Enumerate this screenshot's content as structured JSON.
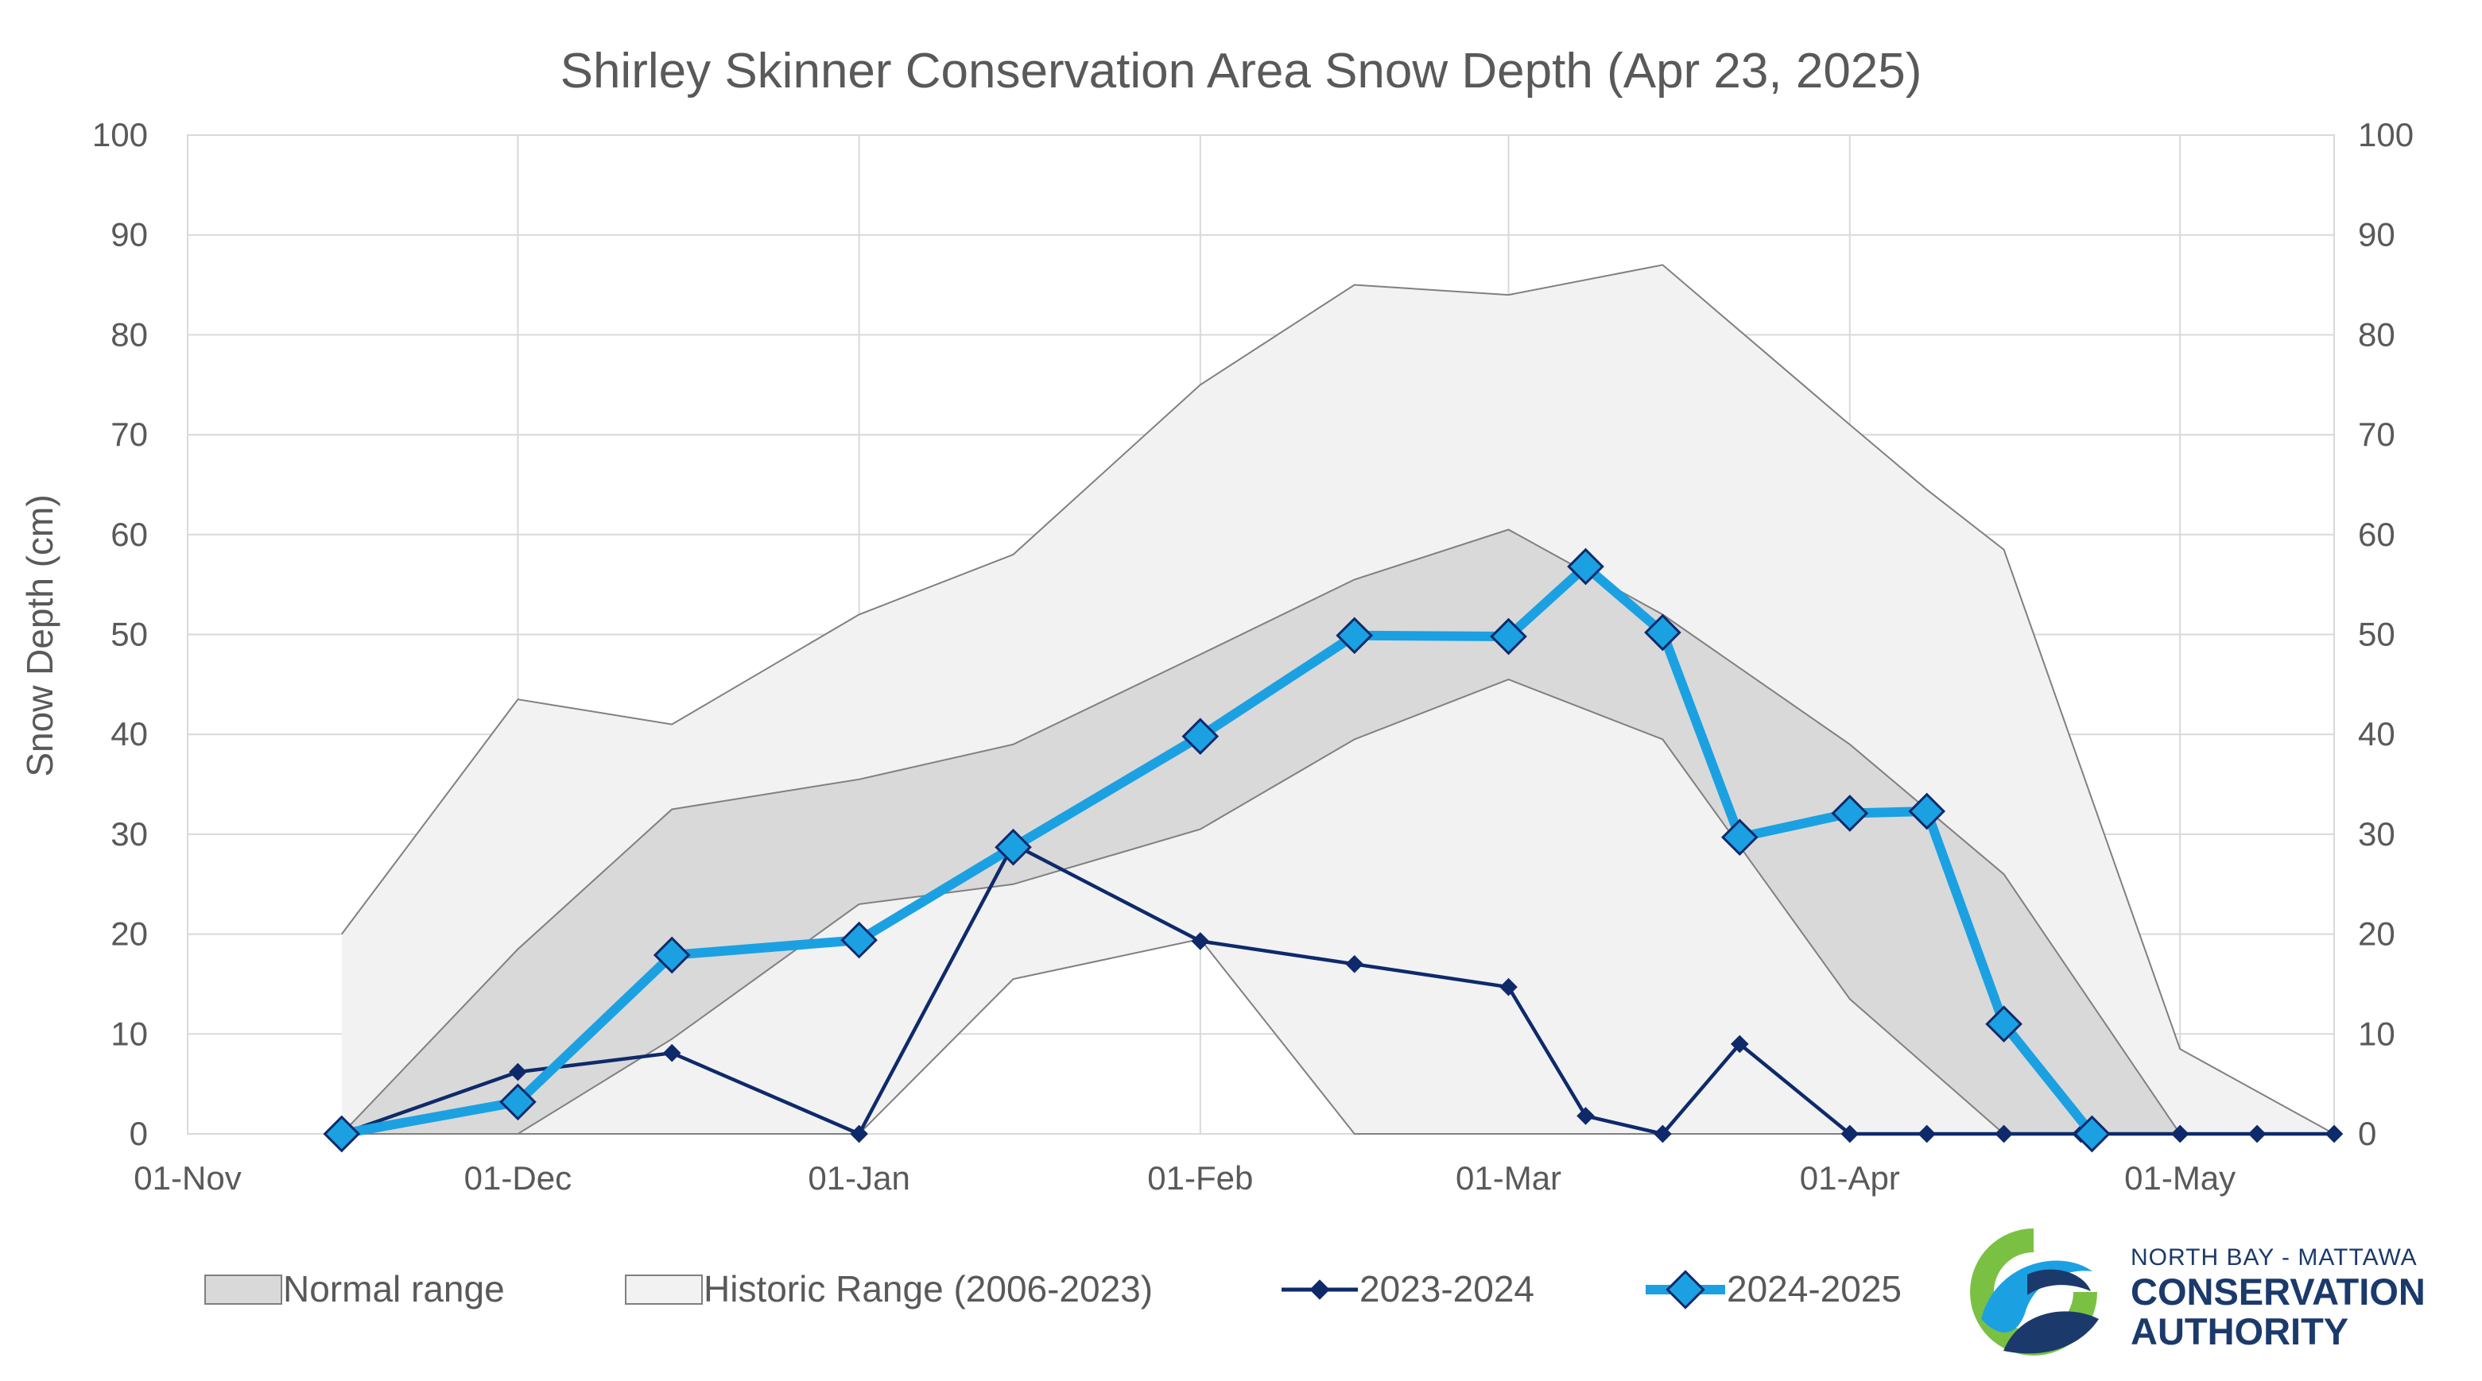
{
  "chart_data": {
    "type": "line",
    "title": "Shirley Skinner Conservation Area Snow Depth (Apr 23, 2025)",
    "ylabel": "Snow Depth (cm)",
    "xlabel": "",
    "ylim": [
      0,
      100
    ],
    "yticks": [
      0,
      10,
      20,
      30,
      40,
      50,
      60,
      70,
      80,
      90,
      100
    ],
    "xlim": [
      "2024-11-01",
      "2025-05-15"
    ],
    "xticks": [
      {
        "date": "2024-11-01",
        "label": "01-Nov"
      },
      {
        "date": "2024-12-01",
        "label": "01-Dec"
      },
      {
        "date": "2025-01-01",
        "label": "01-Jan"
      },
      {
        "date": "2025-02-01",
        "label": "01-Feb"
      },
      {
        "date": "2025-03-01",
        "label": "01-Mar"
      },
      {
        "date": "2025-04-01",
        "label": "01-Apr"
      },
      {
        "date": "2025-05-01",
        "label": "01-May"
      }
    ],
    "secondary_y_axis": true,
    "grid": true,
    "legend_position": "bottom",
    "series": [
      {
        "name": "Normal range",
        "kind": "band",
        "color": "#d9d9d9",
        "x": [
          "2024-11-15",
          "2024-12-01",
          "2024-12-15",
          "2025-01-01",
          "2025-01-15",
          "2025-02-01",
          "2025-02-15",
          "2025-03-01",
          "2025-03-15",
          "2025-04-01",
          "2025-04-15",
          "2025-05-01"
        ],
        "lower": [
          0,
          0,
          9.5,
          23,
          25,
          30.5,
          39.5,
          45.5,
          39.5,
          13.5,
          0,
          0
        ],
        "upper": [
          0,
          18.5,
          32.5,
          35.5,
          39,
          48,
          55.5,
          60.5,
          52,
          39,
          26,
          0
        ]
      },
      {
        "name": "Historic Range (2006-2023)",
        "kind": "band",
        "color": "#f2f2f2",
        "x": [
          "2024-11-15",
          "2024-12-01",
          "2024-12-15",
          "2025-01-01",
          "2025-01-15",
          "2025-02-01",
          "2025-02-15",
          "2025-03-01",
          "2025-03-15",
          "2025-04-01",
          "2025-04-08",
          "2025-04-15",
          "2025-05-01",
          "2025-05-15"
        ],
        "lower": [
          0,
          0,
          0,
          0,
          15.5,
          19.5,
          0,
          0,
          0,
          0,
          0,
          0,
          0,
          0
        ],
        "upper": [
          20,
          43.5,
          41,
          52,
          58,
          75,
          85,
          84,
          87,
          71,
          64.5,
          58.5,
          8.5,
          0
        ]
      },
      {
        "name": "2023-2024",
        "kind": "line",
        "color": "#0e2a6b",
        "x": [
          "2024-11-15",
          "2024-12-01",
          "2024-12-15",
          "2025-01-01",
          "2025-01-15",
          "2025-02-01",
          "2025-02-15",
          "2025-03-01",
          "2025-03-08",
          "2025-03-15",
          "2025-03-22",
          "2025-04-01",
          "2025-04-08",
          "2025-04-15",
          "2025-04-22",
          "2025-05-01",
          "2025-05-08",
          "2025-05-15"
        ],
        "y": [
          0,
          6.2,
          8.1,
          0,
          29,
          19.3,
          17,
          14.7,
          1.8,
          0,
          9,
          0,
          0,
          0,
          0,
          0,
          0,
          0
        ]
      },
      {
        "name": "2024-2025",
        "kind": "line",
        "color": "#1ba1e2",
        "x": [
          "2024-11-15",
          "2024-12-01",
          "2024-12-15",
          "2025-01-01",
          "2025-01-15",
          "2025-02-01",
          "2025-02-15",
          "2025-03-01",
          "2025-03-08",
          "2025-03-15",
          "2025-03-22",
          "2025-04-01",
          "2025-04-08",
          "2025-04-15",
          "2025-04-23"
        ],
        "y": [
          0,
          3.2,
          17.9,
          19.4,
          28.7,
          39.8,
          49.9,
          49.8,
          56.8,
          50.2,
          29.7,
          32.1,
          32.3,
          11,
          0
        ]
      }
    ]
  },
  "legend": {
    "items": [
      {
        "label": "Normal range"
      },
      {
        "label": "Historic Range (2006-2023)"
      },
      {
        "label": "2023-2024"
      },
      {
        "label": "2024-2025"
      }
    ]
  },
  "logo": {
    "line1": "NORTH BAY - MATTAWA",
    "line2": "CONSERVATION",
    "line3": "AUTHORITY",
    "colors": {
      "green": "#7ac143",
      "blue": "#1ba1e2",
      "navy": "#1b3a6b"
    }
  }
}
